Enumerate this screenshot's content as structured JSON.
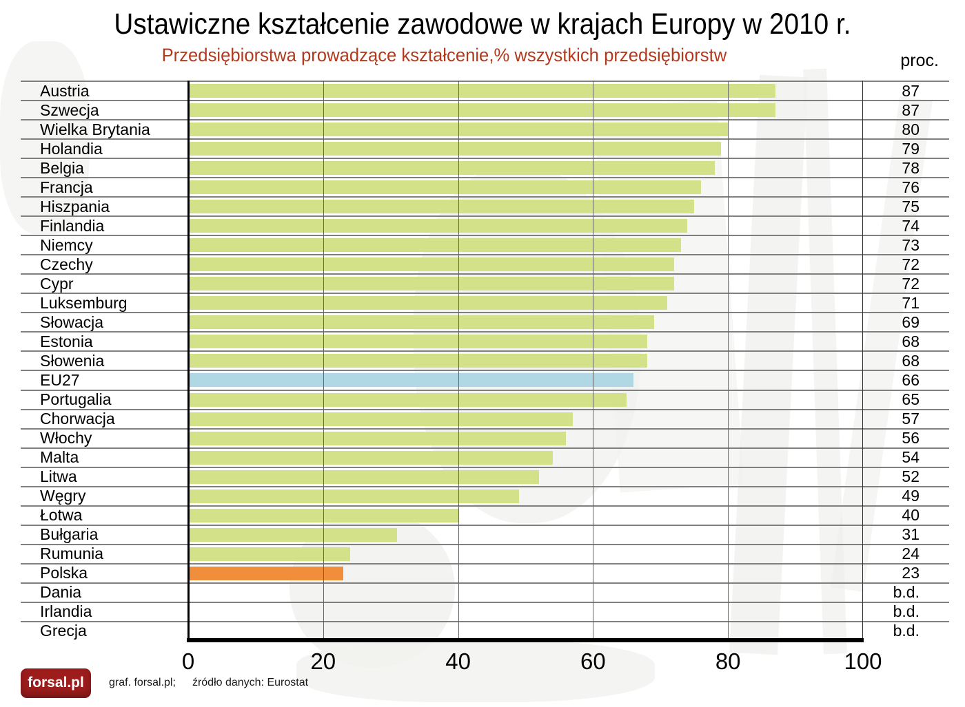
{
  "chart_data": {
    "type": "bar",
    "orientation": "horizontal",
    "title": "Ustawiczne kształcenie zawodowe w krajach Europy w 2010 r.",
    "subtitle": "Przedsiębiorstwa prowadzące kształcenie,% wszystkich przedsiębiorstw",
    "unit_label": "proc.",
    "xlim": [
      0,
      100
    ],
    "x_tick_labels": [
      "0",
      "20",
      "40",
      "60",
      "80",
      "100"
    ],
    "grid": "vertical gridlines at each tick, drawn over bars",
    "legend": "none",
    "no_data_label": "b.d.",
    "categories": [
      "Austria",
      "Szwecja",
      "Wielka Brytania",
      "Holandia",
      "Belgia",
      "Francja",
      "Hiszpania",
      "Finlandia",
      "Niemcy",
      "Czechy",
      "Cypr",
      "Luksemburg",
      "Słowacja",
      "Estonia",
      "Słowenia",
      "EU27",
      "Portugalia",
      "Chorwacja",
      "Włochy",
      "Malta",
      "Litwa",
      "Węgry",
      "Łotwa",
      "Bułgaria",
      "Rumunia",
      "Polska",
      "Dania",
      "Irlandia",
      "Grecja"
    ],
    "values": [
      87,
      87,
      80,
      79,
      78,
      76,
      75,
      74,
      73,
      72,
      72,
      71,
      69,
      68,
      68,
      66,
      65,
      57,
      56,
      54,
      52,
      49,
      40,
      31,
      24,
      23,
      null,
      null,
      null
    ],
    "highlighted_categories": {
      "EU27": "blue",
      "Polska": "orange"
    }
  },
  "colors": {
    "bar_default": "#d3e288",
    "bar_eu27": "#b0d7e4",
    "bar_polska": "#f18e3c",
    "subtitle_text": "#b23a1c",
    "logo_background": "#9d1c1c",
    "row_separator": "#7f7f7f",
    "gridline": "#666666",
    "axis": "#000000"
  },
  "footer": {
    "logo_text": "forsal.pl",
    "credit": "graf. forsal.pl;",
    "source": "źródło danych: Eurostat"
  }
}
